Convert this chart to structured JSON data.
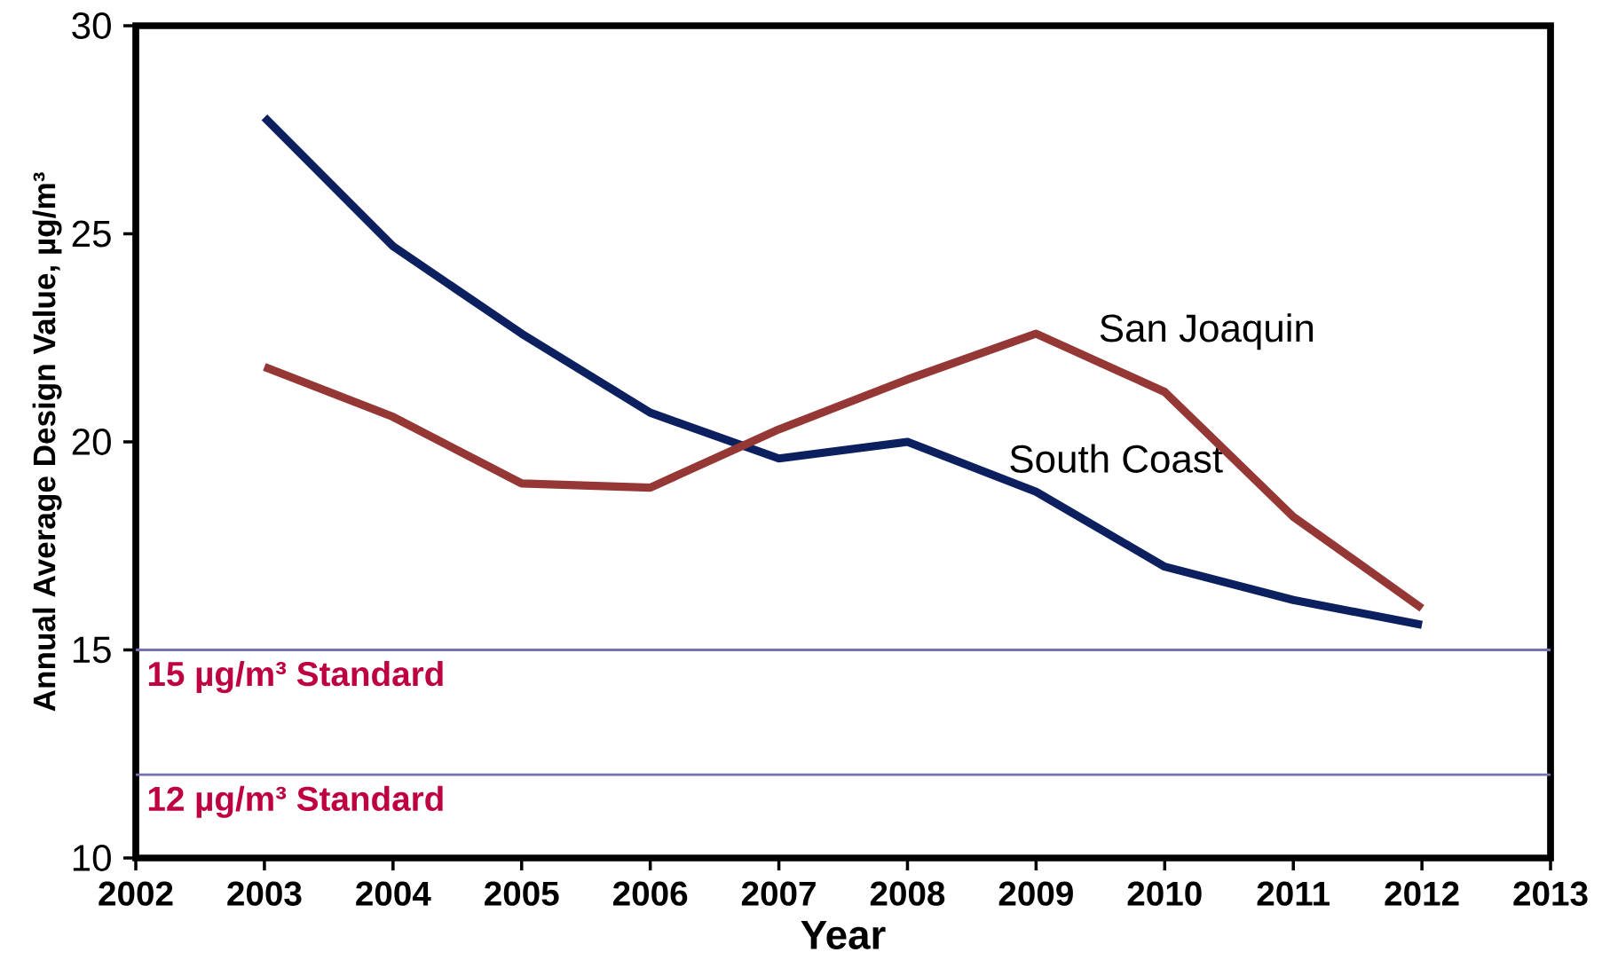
{
  "chart_data": {
    "type": "line",
    "xlabel": "Year",
    "ylabel": "Annual Average Design Value, µg/m³",
    "x": [
      2003,
      2004,
      2005,
      2006,
      2007,
      2008,
      2009,
      2010,
      2011,
      2012
    ],
    "series": [
      {
        "name": "South Coast",
        "color": "#0c1f5e",
        "values": [
          27.8,
          24.7,
          22.6,
          20.7,
          19.6,
          20.0,
          18.8,
          17.0,
          16.2,
          15.6
        ]
      },
      {
        "name": "San Joaquin",
        "color": "#953735",
        "values": [
          21.8,
          20.6,
          19.0,
          18.9,
          20.3,
          21.5,
          22.6,
          21.2,
          18.2,
          16.0
        ]
      }
    ],
    "xlim": [
      2002,
      2013
    ],
    "xticks": [
      2002,
      2003,
      2004,
      2005,
      2006,
      2007,
      2008,
      2009,
      2010,
      2011,
      2012,
      2013
    ],
    "ylim": [
      10,
      30
    ],
    "yticks": [
      10,
      15,
      20,
      25,
      30
    ],
    "ref_lines": [
      {
        "axis": "y",
        "value": 15,
        "label": "15 µg/m³ Standard",
        "color": "#7272b4"
      },
      {
        "axis": "y",
        "value": 12,
        "label": "12 µg/m³ Standard",
        "color": "#7272b4"
      }
    ],
    "grid": false,
    "marker": "none",
    "line_style": "solid"
  }
}
